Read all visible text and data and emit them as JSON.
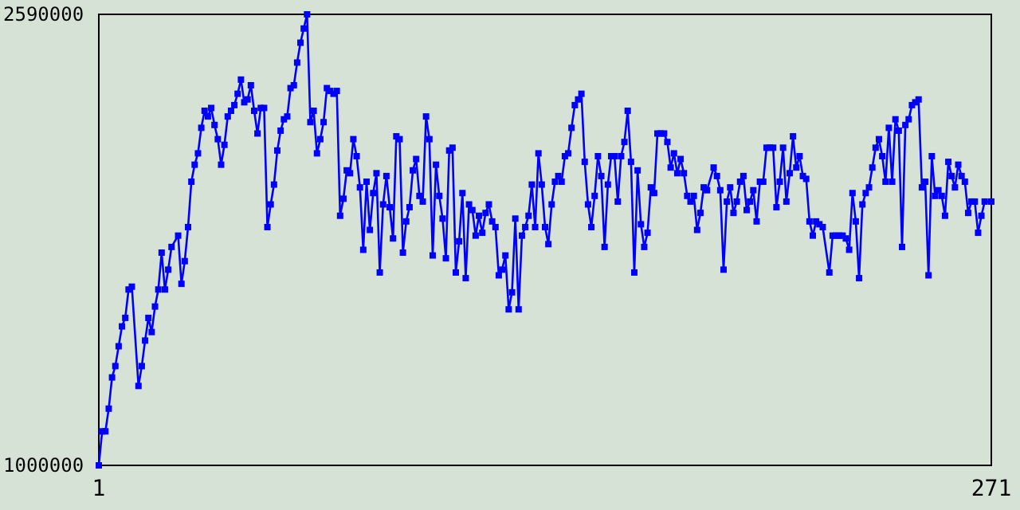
{
  "chart_data": {
    "type": "line",
    "xlim": [
      1,
      271
    ],
    "xticks": [
      1,
      271
    ],
    "ylim": [
      1000000,
      2590000
    ],
    "yticks": [
      1000000,
      2590000
    ],
    "marker": "square",
    "line_style": "solid",
    "grid": false,
    "series": [
      {
        "color": "#0000ff",
        "x": [
          1,
          2,
          3,
          4,
          5,
          6,
          7,
          8,
          9,
          10,
          11,
          13,
          14,
          15,
          16,
          17,
          18,
          19,
          20,
          21,
          22,
          23,
          25,
          26,
          27,
          28,
          29,
          30,
          31,
          32,
          33,
          34,
          35,
          36,
          37,
          38,
          39,
          40,
          41,
          42,
          43,
          44,
          45,
          46,
          47,
          48,
          49,
          50,
          51,
          52,
          53,
          54,
          55,
          56,
          57,
          58,
          59,
          60,
          61,
          62,
          63,
          64,
          65,
          66,
          67,
          68,
          69,
          70,
          71,
          72,
          73,
          74,
          75,
          76,
          77,
          78,
          79,
          80,
          81,
          82,
          83,
          84,
          85,
          86,
          87,
          88,
          89,
          90,
          91,
          92,
          93,
          94,
          95,
          96,
          97,
          98,
          99,
          100,
          101,
          102,
          103,
          104,
          105,
          106,
          107,
          108,
          109,
          110,
          111,
          112,
          113,
          114,
          115,
          116,
          117,
          118,
          119,
          120,
          121,
          122,
          123,
          124,
          125,
          126,
          127,
          128,
          129,
          130,
          131,
          132,
          133,
          134,
          135,
          136,
          137,
          138,
          139,
          140,
          141,
          142,
          143,
          144,
          145,
          146,
          147,
          148,
          149,
          150,
          151,
          152,
          153,
          154,
          155,
          156,
          157,
          158,
          159,
          160,
          161,
          162,
          163,
          164,
          165,
          166,
          167,
          168,
          169,
          170,
          171,
          172,
          173,
          174,
          175,
          176,
          177,
          178,
          179,
          180,
          181,
          182,
          183,
          184,
          185,
          187,
          188,
          189,
          190,
          191,
          192,
          193,
          194,
          195,
          196,
          197,
          198,
          199,
          200,
          201,
          202,
          203,
          204,
          205,
          206,
          207,
          208,
          209,
          210,
          211,
          212,
          213,
          214,
          215,
          216,
          217,
          218,
          219,
          220,
          222,
          223,
          224,
          225,
          226,
          227,
          228,
          229,
          230,
          231,
          232,
          233,
          234,
          235,
          236,
          237,
          238,
          239,
          240,
          241,
          242,
          243,
          244,
          245,
          246,
          247,
          248,
          249,
          250,
          251,
          252,
          253,
          254,
          255,
          256,
          257,
          258,
          259,
          260,
          261,
          262,
          263,
          264,
          265,
          266,
          267,
          268,
          269,
          271
        ],
        "values": [
          1000000,
          1120000,
          1120000,
          1200000,
          1310000,
          1350000,
          1420000,
          1490000,
          1520000,
          1620000,
          1630000,
          1280000,
          1350000,
          1440000,
          1520000,
          1470000,
          1560000,
          1620000,
          1750000,
          1620000,
          1690000,
          1770000,
          1810000,
          1640000,
          1720000,
          1840000,
          2000000,
          2060000,
          2100000,
          2190000,
          2250000,
          2230000,
          2260000,
          2200000,
          2150000,
          2060000,
          2130000,
          2230000,
          2250000,
          2270000,
          2310000,
          2360000,
          2280000,
          2290000,
          2340000,
          2250000,
          2170000,
          2260000,
          2260000,
          1840000,
          1920000,
          1990000,
          2110000,
          2180000,
          2220000,
          2230000,
          2330000,
          2340000,
          2420000,
          2490000,
          2540000,
          2590000,
          2210000,
          2250000,
          2100000,
          2150000,
          2210000,
          2330000,
          2320000,
          2310000,
          2320000,
          1880000,
          1940000,
          2040000,
          2030000,
          2150000,
          2090000,
          1980000,
          1760000,
          2000000,
          1830000,
          1960000,
          2030000,
          1680000,
          1920000,
          2020000,
          1910000,
          1800000,
          2160000,
          2150000,
          1750000,
          1860000,
          1910000,
          2040000,
          2080000,
          1950000,
          1930000,
          2230000,
          2150000,
          1740000,
          2060000,
          1950000,
          1870000,
          1730000,
          2110000,
          2120000,
          1680000,
          1790000,
          1960000,
          1660000,
          1920000,
          1900000,
          1810000,
          1880000,
          1820000,
          1890000,
          1920000,
          1860000,
          1840000,
          1670000,
          1690000,
          1740000,
          1550000,
          1610000,
          1870000,
          1550000,
          1810000,
          1840000,
          1880000,
          1990000,
          1840000,
          2100000,
          1990000,
          1840000,
          1780000,
          1920000,
          2000000,
          2020000,
          2000000,
          2090000,
          2100000,
          2190000,
          2270000,
          2290000,
          2310000,
          2070000,
          1920000,
          1840000,
          1950000,
          2090000,
          2020000,
          1770000,
          1990000,
          2090000,
          2090000,
          1930000,
          2090000,
          2140000,
          2250000,
          2070000,
          1680000,
          2040000,
          1850000,
          1770000,
          1820000,
          1980000,
          1960000,
          2170000,
          2170000,
          2170000,
          2140000,
          2050000,
          2100000,
          2030000,
          2080000,
          2030000,
          1950000,
          1930000,
          1950000,
          1830000,
          1890000,
          1980000,
          1970000,
          2050000,
          2020000,
          1970000,
          1690000,
          1930000,
          1980000,
          1890000,
          1930000,
          2000000,
          2020000,
          1900000,
          1930000,
          1970000,
          1860000,
          2000000,
          2000000,
          2120000,
          2120000,
          2120000,
          1910000,
          2000000,
          2120000,
          1930000,
          2030000,
          2160000,
          2050000,
          2090000,
          2020000,
          2010000,
          1860000,
          1810000,
          1860000,
          1850000,
          1840000,
          1680000,
          1810000,
          1810000,
          1810000,
          1810000,
          1800000,
          1760000,
          1960000,
          1860000,
          1660000,
          1920000,
          1960000,
          1980000,
          2050000,
          2120000,
          2150000,
          2090000,
          2000000,
          2190000,
          2000000,
          2220000,
          2180000,
          1770000,
          2200000,
          2220000,
          2270000,
          2280000,
          2290000,
          1980000,
          2000000,
          1670000,
          2090000,
          1950000,
          1970000,
          1950000,
          1880000,
          2070000,
          2020000,
          1980000,
          2060000,
          2020000,
          2000000,
          1890000,
          1930000,
          1930000,
          1820000,
          1880000,
          1930000,
          1930000
        ]
      }
    ]
  }
}
